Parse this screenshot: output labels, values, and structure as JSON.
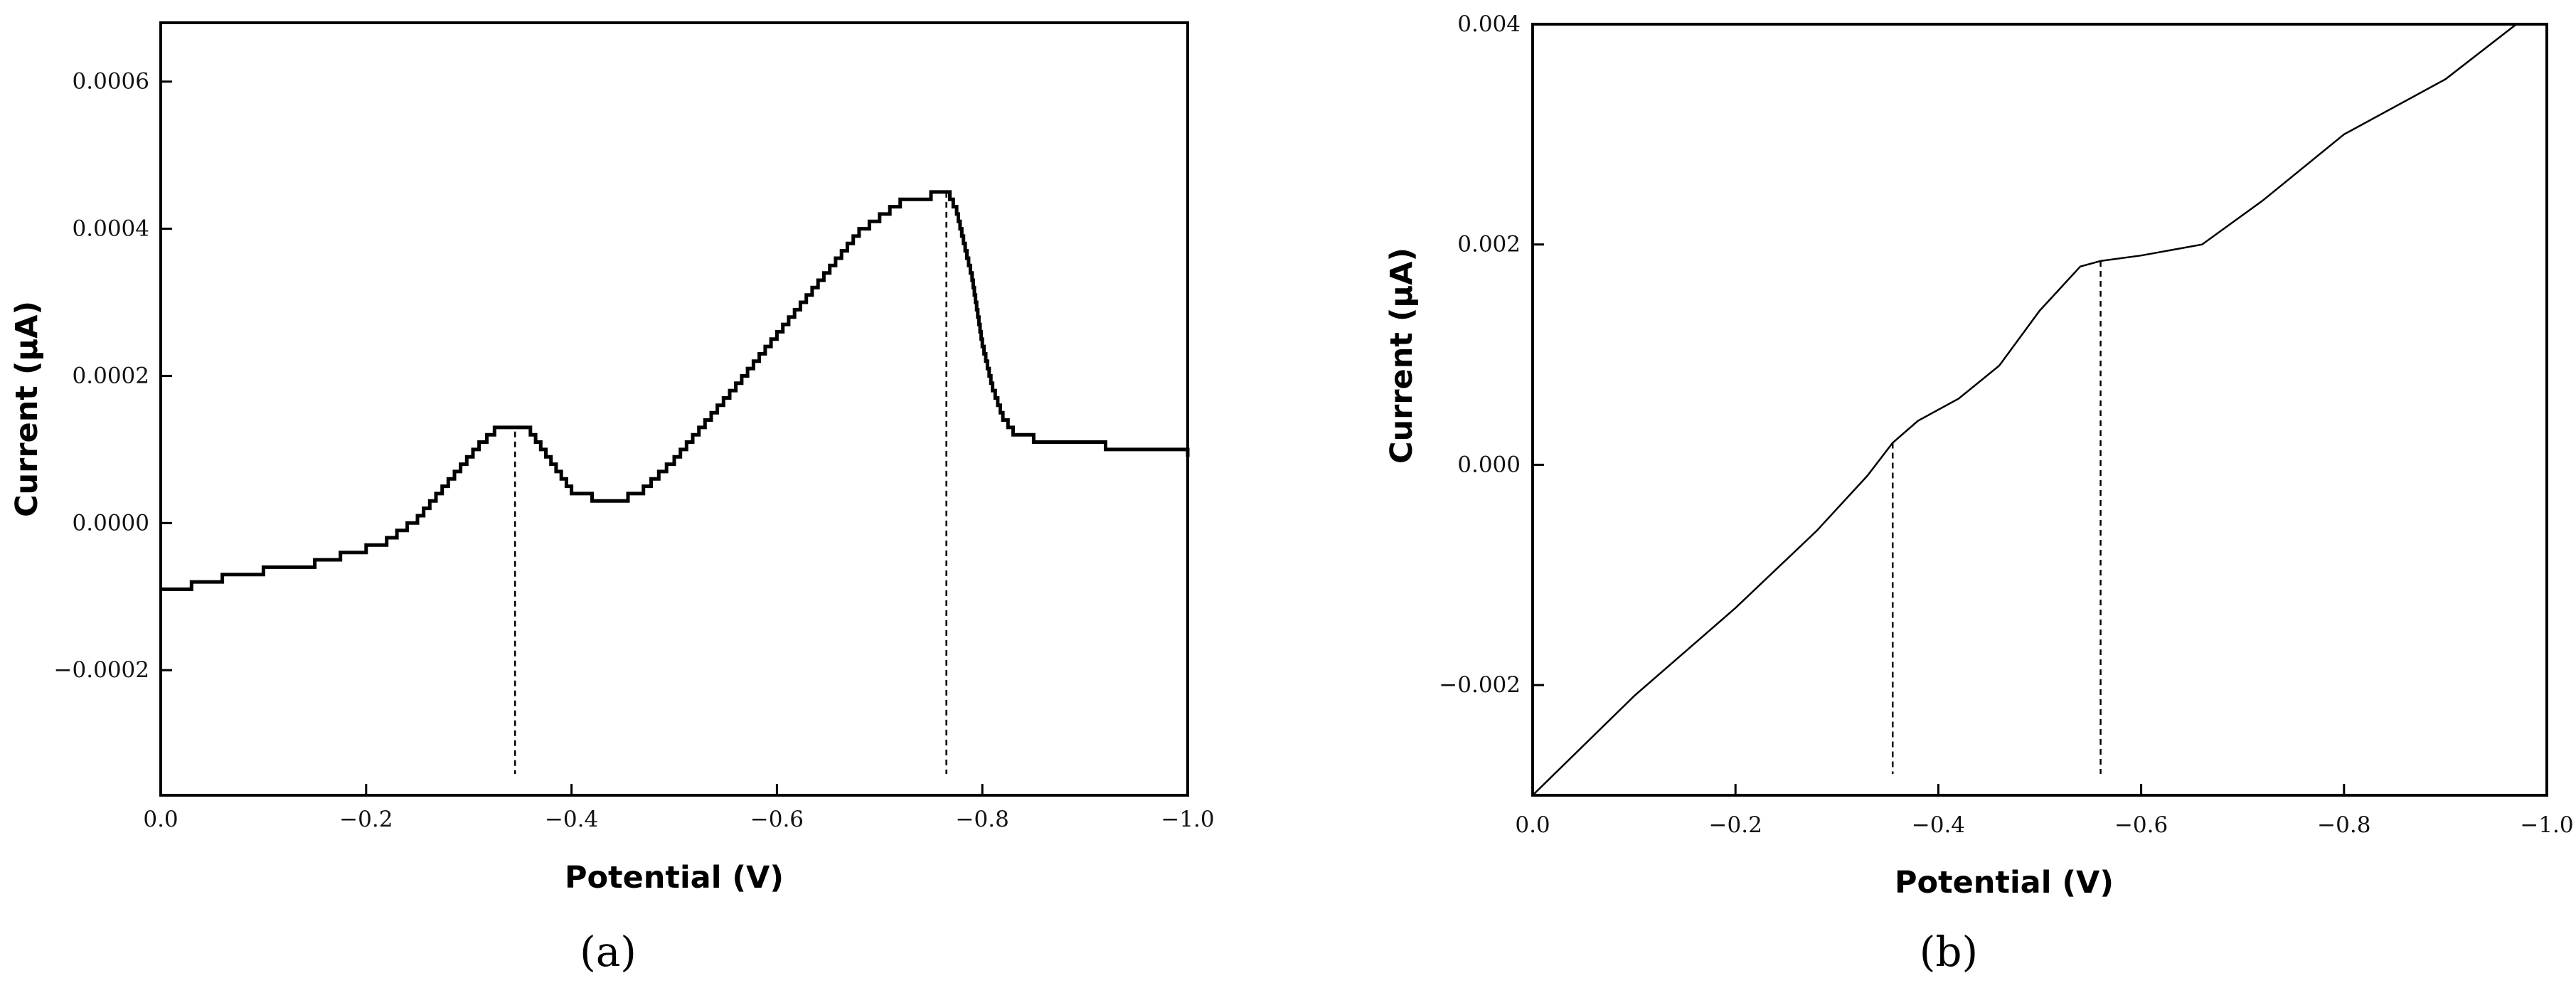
{
  "chart_data": [
    {
      "type": "line",
      "panel_label": "(a)",
      "xlabel": "Potential (V)",
      "ylabel": "Current (µA)",
      "xlim": [
        0.0,
        -1.0
      ],
      "ylim": [
        -0.00037,
        0.00068
      ],
      "x_ticks": [
        0.0,
        -0.2,
        -0.4,
        -0.6,
        -0.8,
        -1.0
      ],
      "x_tick_labels": [
        "0.0",
        "−0.2",
        "−0.4",
        "−0.6",
        "−0.8",
        "−1.0"
      ],
      "y_ticks": [
        -0.0002,
        0.0,
        0.0002,
        0.0004,
        0.0006
      ],
      "y_tick_labels": [
        "−0.0002",
        "0.0000",
        "0.0002",
        "0.0004",
        "0.0006"
      ],
      "grid": false,
      "stepped": true,
      "series": [
        {
          "x": [
            0.0,
            -0.03,
            -0.06,
            -0.1,
            -0.15,
            -0.2,
            -0.22,
            -0.25,
            -0.28,
            -0.31,
            -0.325,
            -0.36,
            -0.38,
            -0.4,
            -0.42,
            -0.44,
            -0.47,
            -0.5,
            -0.53,
            -0.56,
            -0.6,
            -0.64,
            -0.68,
            -0.72,
            -0.75,
            -0.765,
            -0.775,
            -0.79,
            -0.8,
            -0.81,
            -0.82,
            -0.83,
            -0.85,
            -0.88,
            -0.92,
            -0.97,
            -1.0
          ],
          "y": [
            -9e-05,
            -8e-05,
            -7e-05,
            -6e-05,
            -5e-05,
            -3e-05,
            -2e-05,
            1e-05,
            6e-05,
            0.00011,
            0.00013,
            0.00012,
            8e-05,
            4e-05,
            3e-05,
            3e-05,
            5e-05,
            9e-05,
            0.00014,
            0.00019,
            0.00026,
            0.00033,
            0.0004,
            0.00044,
            0.00045,
            0.00045,
            0.00042,
            0.00033,
            0.00024,
            0.00018,
            0.00014,
            0.00012,
            0.00011,
            0.00011,
            0.0001,
            0.0001,
            9e-05
          ]
        }
      ],
      "markers_x": [
        -0.345,
        -0.765
      ]
    },
    {
      "type": "line",
      "panel_label": "(b)",
      "xlabel": "Potential (V)",
      "ylabel": "Current (µA)",
      "xlim": [
        0.0,
        -1.0
      ],
      "ylim": [
        -0.003,
        0.004
      ],
      "x_ticks": [
        0.0,
        -0.2,
        -0.4,
        -0.6,
        -0.8,
        -1.0
      ],
      "x_tick_labels": [
        "0.0",
        "−0.2",
        "−0.4",
        "−0.6",
        "−0.8",
        "−1.0"
      ],
      "y_ticks": [
        -0.002,
        0.0,
        0.002,
        0.004
      ],
      "y_tick_labels": [
        "−0.002",
        "0.000",
        "0.002",
        "0.004"
      ],
      "grid": false,
      "stepped": false,
      "series": [
        {
          "x": [
            0.0,
            -0.1,
            -0.2,
            -0.28,
            -0.33,
            -0.355,
            -0.38,
            -0.42,
            -0.46,
            -0.5,
            -0.54,
            -0.56,
            -0.6,
            -0.66,
            -0.72,
            -0.8,
            -0.9,
            -0.97
          ],
          "y": [
            -0.003,
            -0.0021,
            -0.0013,
            -0.0006,
            -0.0001,
            0.0002,
            0.0004,
            0.0006,
            0.0009,
            0.0014,
            0.0018,
            0.00185,
            0.0019,
            0.002,
            0.0024,
            0.003,
            0.0035,
            0.004
          ]
        }
      ],
      "markers_x": [
        -0.355,
        -0.56
      ]
    }
  ]
}
